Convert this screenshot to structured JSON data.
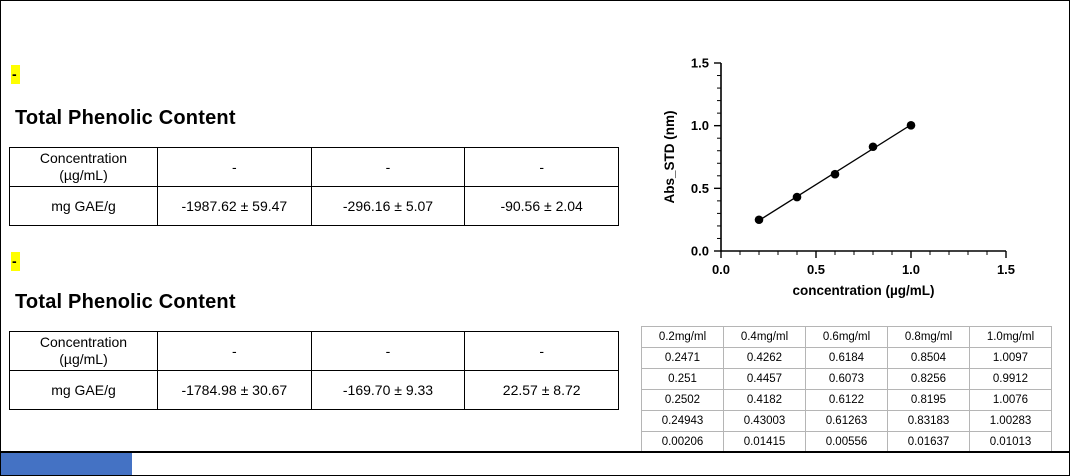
{
  "page": {
    "highlight_yellow": "#ffff00",
    "accent_blue": "#4472c4",
    "border_color": "#000000"
  },
  "sections": [
    {
      "marker": "-",
      "title": "Total Phenolic Content",
      "table": {
        "rows": [
          [
            "Concentration\n(µg/mL)",
            "-",
            "-",
            "-"
          ],
          [
            "mg GAE/g",
            "-1987.62 ± 59.47",
            "-296.16 ± 5.07",
            "-90.56 ± 2.04"
          ]
        ]
      }
    },
    {
      "marker": "-",
      "title": "Total Phenolic Content",
      "table": {
        "rows": [
          [
            "Concentration\n(µg/mL)",
            "-",
            "-",
            "-"
          ],
          [
            "mg GAE/g",
            "-1784.98 ± 30.67",
            "-169.70 ± 9.33",
            "22.57 ± 8.72"
          ]
        ]
      }
    }
  ],
  "chart_data": {
    "type": "scatter",
    "title": "",
    "xlabel": "concentration (µg/mL)",
    "ylabel": "Abs_STD (nm)",
    "xlim": [
      0,
      1.5
    ],
    "ylim": [
      0,
      1.5
    ],
    "xticks": [
      0.0,
      0.5,
      1.0,
      1.5
    ],
    "yticks": [
      0.0,
      0.5,
      1.0,
      1.5
    ],
    "minor_tick_step": 0.1,
    "grid": false,
    "legend": "none",
    "points": {
      "x": [
        0.2,
        0.4,
        0.6,
        0.8,
        1.0
      ],
      "y": [
        0.24943,
        0.43003,
        0.61263,
        0.83183,
        1.00283
      ]
    },
    "fit_line": {
      "x": [
        0.2,
        1.0
      ],
      "y": [
        0.2436,
        1.007
      ]
    }
  },
  "std_table": {
    "headers": [
      "0.2mg/ml",
      "0.4mg/ml",
      "0.6mg/ml",
      "0.8mg/ml",
      "1.0mg/ml"
    ],
    "rows": [
      [
        "0.2471",
        "0.4262",
        "0.6184",
        "0.8504",
        "1.0097"
      ],
      [
        "0.251",
        "0.4457",
        "0.6073",
        "0.8256",
        "0.9912"
      ],
      [
        "0.2502",
        "0.4182",
        "0.6122",
        "0.8195",
        "1.0076"
      ],
      [
        "0.24943",
        "0.43003",
        "0.61263",
        "0.83183",
        "1.00283"
      ],
      [
        "0.00206",
        "0.01415",
        "0.00556",
        "0.01637",
        "0.01013"
      ]
    ]
  }
}
